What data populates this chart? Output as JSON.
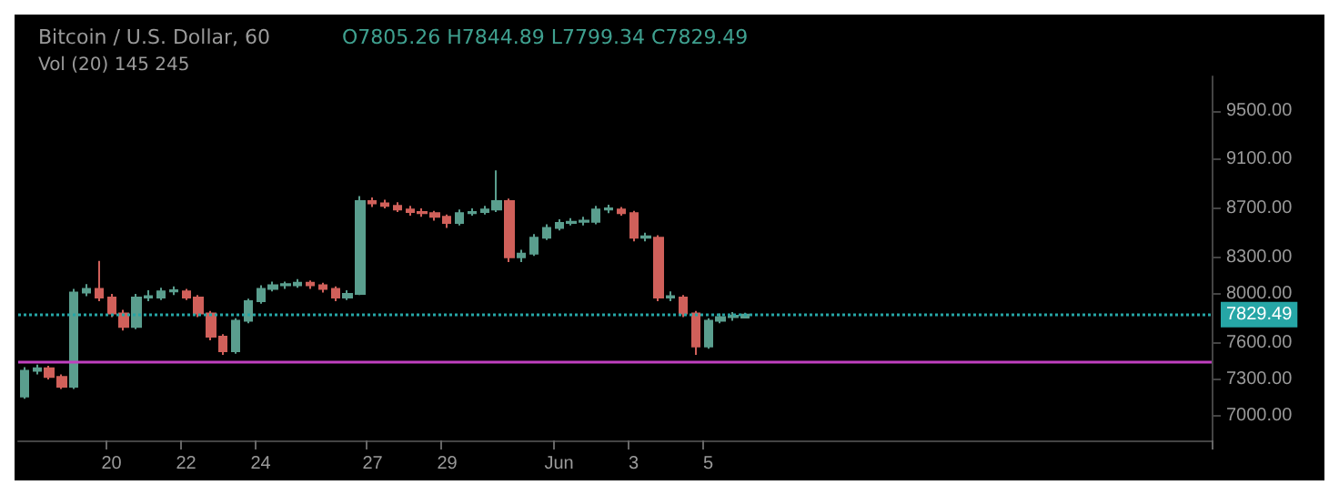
{
  "chart_data": {
    "type": "candlestick",
    "title": "Bitcoin / U.S. Dollar, 60",
    "subtitle": "O7805.26 H7844.89 L7799.34 C7829.49",
    "annotations": [
      "Vol (20) 145 245"
    ],
    "categories": [
      null,
      null,
      null,
      null,
      null,
      null,
      null,
      "20",
      null,
      null,
      null,
      null,
      null,
      "22",
      null,
      null,
      null,
      null,
      null,
      "24",
      null,
      null,
      null,
      null,
      null,
      null,
      null,
      null,
      "27",
      null,
      null,
      null,
      null,
      null,
      "29",
      null,
      null,
      null,
      null,
      null,
      null,
      null,
      null,
      "Jun",
      null,
      null,
      null,
      null,
      null,
      "3",
      null,
      null,
      null,
      null,
      null,
      "5",
      null,
      null,
      null,
      null,
      null,
      null,
      null,
      null,
      null,
      null,
      null,
      null,
      null,
      null,
      null,
      null,
      null,
      null,
      null,
      null,
      null,
      null,
      null,
      null,
      null,
      null,
      null,
      null,
      null,
      null,
      null,
      null,
      null,
      null,
      null,
      null,
      null,
      null,
      null,
      null
    ],
    "colors": [
      "#5a9e8e",
      "#5a9e8e",
      "#d0605a",
      "#d0605a",
      "#5a9e8e",
      "#5a9e8e",
      "#d0605a",
      "#d0605a",
      "#d0605a",
      "#5a9e8e",
      "#5a9e8e",
      "#5a9e8e",
      "#5a9e8e",
      "#d0605a",
      "#d0605a",
      "#d0605a",
      "#d0605a",
      "#5a9e8e",
      "#5a9e8e",
      "#5a9e8e",
      "#5a9e8e",
      "#5a9e8e",
      "#5a9e8e",
      "#d0605a",
      "#d0605a",
      "#d0605a",
      "#5a9e8e",
      "#5a9e8e",
      "#d0605a",
      "#d0605a",
      "#d0605a",
      "#d0605a",
      "#d0605a",
      "#d0605a",
      "#d0605a",
      "#5a9e8e",
      "#5a9e8e",
      "#5a9e8e",
      "#5a9e8e",
      "#d0605a",
      "#5a9e8e",
      "#5a9e8e",
      "#5a9e8e",
      "#5a9e8e",
      "#5a9e8e",
      "#5a9e8e",
      "#5a9e8e",
      "#5a9e8e",
      "#d0605a",
      "#d0605a",
      "#5a9e8e",
      "#d0605a",
      "#5a9e8e",
      "#d0605a",
      "#d0605a",
      "#5a9e8e",
      "#5a9e8e",
      "#5a9e8e",
      "#5a9e8e",
      null,
      null,
      null,
      null,
      null,
      null,
      null,
      null,
      null,
      null,
      null,
      null,
      null,
      null,
      null,
      null,
      null,
      null,
      null,
      null,
      null,
      null,
      null,
      null,
      null,
      null,
      null,
      null,
      null,
      null,
      null,
      null,
      null,
      null,
      null,
      null,
      null
    ],
    "ohlc": [
      [
        7160,
        7400,
        7140,
        7370
      ],
      [
        7370,
        7420,
        7340,
        7390
      ],
      [
        7390,
        7410,
        7300,
        7320
      ],
      [
        7320,
        7340,
        7220,
        7240
      ],
      [
        7240,
        8040,
        7220,
        8010
      ],
      [
        8010,
        8080,
        7980,
        8040
      ],
      [
        8040,
        8270,
        7940,
        7970
      ],
      [
        7970,
        8000,
        7810,
        7840
      ],
      [
        7840,
        7870,
        7700,
        7730
      ],
      [
        7730,
        8000,
        7710,
        7970
      ],
      [
        7970,
        8030,
        7940,
        7980
      ],
      [
        7970,
        8050,
        7950,
        8020
      ],
      [
        8020,
        8060,
        7990,
        8030
      ],
      [
        8020,
        8040,
        7950,
        7970
      ],
      [
        7970,
        7990,
        7810,
        7840
      ],
      [
        7840,
        7860,
        7620,
        7650
      ],
      [
        7650,
        7670,
        7500,
        7530
      ],
      [
        7530,
        7800,
        7510,
        7780
      ],
      [
        7780,
        7960,
        7760,
        7940
      ],
      [
        7940,
        8070,
        7920,
        8040
      ],
      [
        8040,
        8100,
        8020,
        8070
      ],
      [
        8070,
        8100,
        8040,
        8080
      ],
      [
        8070,
        8120,
        8050,
        8090
      ],
      [
        8090,
        8110,
        8040,
        8070
      ],
      [
        8070,
        8090,
        8010,
        8040
      ],
      [
        8040,
        8060,
        7940,
        7970
      ],
      [
        7970,
        8030,
        7950,
        8000
      ],
      [
        8000,
        8800,
        7990,
        8760
      ],
      [
        8760,
        8790,
        8710,
        8740
      ],
      [
        8740,
        8770,
        8700,
        8720
      ],
      [
        8720,
        8750,
        8670,
        8690
      ],
      [
        8690,
        8720,
        8640,
        8670
      ],
      [
        8670,
        8700,
        8630,
        8660
      ],
      [
        8660,
        8680,
        8600,
        8630
      ],
      [
        8630,
        8650,
        8540,
        8580
      ],
      [
        8580,
        8690,
        8560,
        8660
      ],
      [
        8660,
        8700,
        8640,
        8670
      ],
      [
        8670,
        8720,
        8650,
        8690
      ],
      [
        8690,
        9010,
        8670,
        8760
      ],
      [
        8760,
        8780,
        8260,
        8300
      ],
      [
        8300,
        8360,
        8260,
        8330
      ],
      [
        8330,
        8490,
        8310,
        8460
      ],
      [
        8460,
        8570,
        8440,
        8540
      ],
      [
        8540,
        8610,
        8520,
        8580
      ],
      [
        8580,
        8620,
        8560,
        8590
      ],
      [
        8590,
        8630,
        8560,
        8600
      ],
      [
        8590,
        8720,
        8570,
        8690
      ],
      [
        8690,
        8730,
        8660,
        8700
      ],
      [
        8690,
        8710,
        8640,
        8660
      ],
      [
        8660,
        8680,
        8430,
        8460
      ],
      [
        8460,
        8500,
        8430,
        8470
      ],
      [
        8460,
        8480,
        7940,
        7970
      ],
      [
        7970,
        8020,
        7940,
        7980
      ],
      [
        7970,
        7990,
        7810,
        7840
      ],
      [
        7840,
        7860,
        7500,
        7570
      ],
      [
        7570,
        7800,
        7550,
        7780
      ],
      [
        7780,
        7840,
        7760,
        7810
      ],
      [
        7810,
        7850,
        7780,
        7820
      ],
      [
        7805.26,
        7844.89,
        7799.34,
        7829.49
      ],
      null,
      null,
      null,
      null,
      null,
      null,
      null,
      null,
      null,
      null,
      null,
      null,
      null,
      null,
      null,
      null,
      null,
      null,
      null,
      null,
      null,
      null,
      null,
      null,
      null,
      null,
      null,
      null,
      null,
      null,
      null,
      null,
      null,
      null,
      null,
      null,
      null
    ],
    "ylim": [
      6800,
      9780
    ],
    "yticks": [
      {
        "value": 7000,
        "label": "7000.00"
      },
      {
        "value": 7300,
        "label": "7300.00"
      },
      {
        "value": 7600,
        "label": "7600.00"
      },
      {
        "value": 8000,
        "label": "8000.00"
      },
      {
        "value": 8300,
        "label": "8300.00"
      },
      {
        "value": 8700,
        "label": "8700.00"
      },
      {
        "value": 9100,
        "label": "9100.00"
      },
      {
        "value": 9500,
        "label": "9500.00"
      }
    ],
    "ref_lines": [
      {
        "axis": "y",
        "value": 7440,
        "color": "#c040c0"
      },
      {
        "axis": "y",
        "value": 7829.49,
        "label": "7829.49",
        "color": "#26a6a6",
        "line_style": "dotted"
      }
    ],
    "grid": false
  }
}
